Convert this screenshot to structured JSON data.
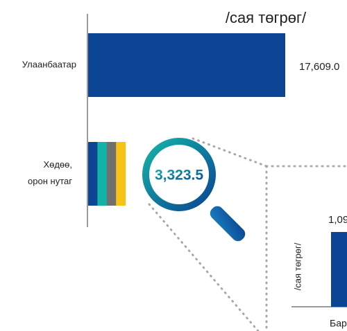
{
  "chart_data": {
    "type": "bar",
    "orientation": "horizontal",
    "unit_label": "/сая төгрөг/",
    "categories": [
      "Улаанбаатар",
      "Хөдөө, орон нутаг"
    ],
    "values": [
      17609.0,
      3323.5
    ],
    "value_labels": [
      "17,609.0",
      "3,323.5"
    ],
    "colors": [
      "#0b4593",
      "#0b4593"
    ],
    "segment_colors": [
      "#0b4593",
      "#12b2a6",
      "#707070",
      "#f7c316"
    ],
    "inset": {
      "axis_label": "/сая төгрөг/",
      "value_label": "1,09",
      "category_label": "Бар"
    }
  }
}
